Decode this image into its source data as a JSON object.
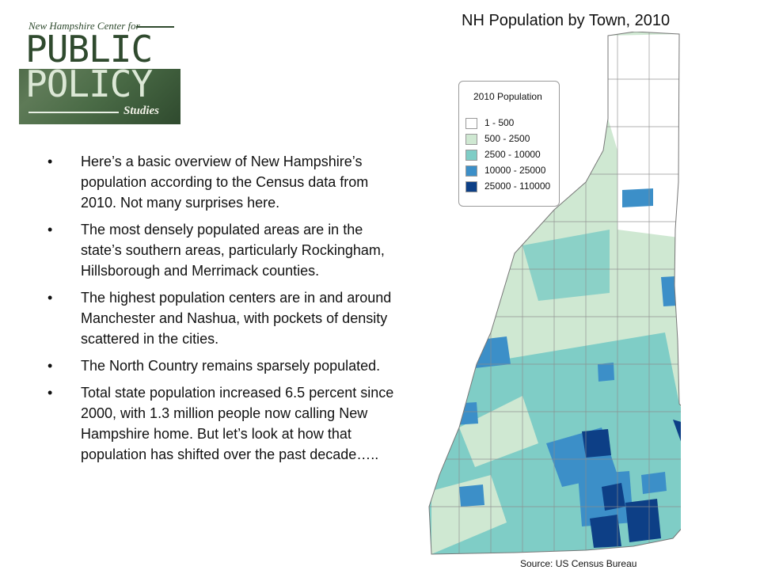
{
  "logo": {
    "org_line": "New Hampshire Center for",
    "word1": "PUBLIC",
    "word2": "POLICY",
    "word3": "Studies"
  },
  "bullets": [
    "Here’s a basic overview of New Hampshire’s population according to the Census data from 2010. Not many surprises here.",
    "The most densely populated areas are in the state’s southern areas, particularly Rockingham, Hillsborough and Merrimack counties.",
    "The highest population centers are in and around Manchester and Nashua, with pockets of density scattered in the cities.",
    "The North Country remains sparsely populated.",
    "Total state population increased 6.5 percent since 2000, with 1.3 million people now calling New Hampshire home. But let’s look at how that population has shifted over the past decade….."
  ],
  "bullet_glyph": "•",
  "map": {
    "title": "NH Population by Town, 2010",
    "source": "Source:  US Census Bureau",
    "legend_title": "2010 Population",
    "legend": [
      {
        "label": "1 - 500",
        "color": "#ffffff"
      },
      {
        "label": "500 - 2500",
        "color": "#cfe8d2"
      },
      {
        "label": "2500 - 10000",
        "color": "#7fcdc6"
      },
      {
        "label": "10000 - 25000",
        "color": "#3c8fc8"
      },
      {
        "label": "25000 - 110000",
        "color": "#0d3f86"
      }
    ]
  }
}
